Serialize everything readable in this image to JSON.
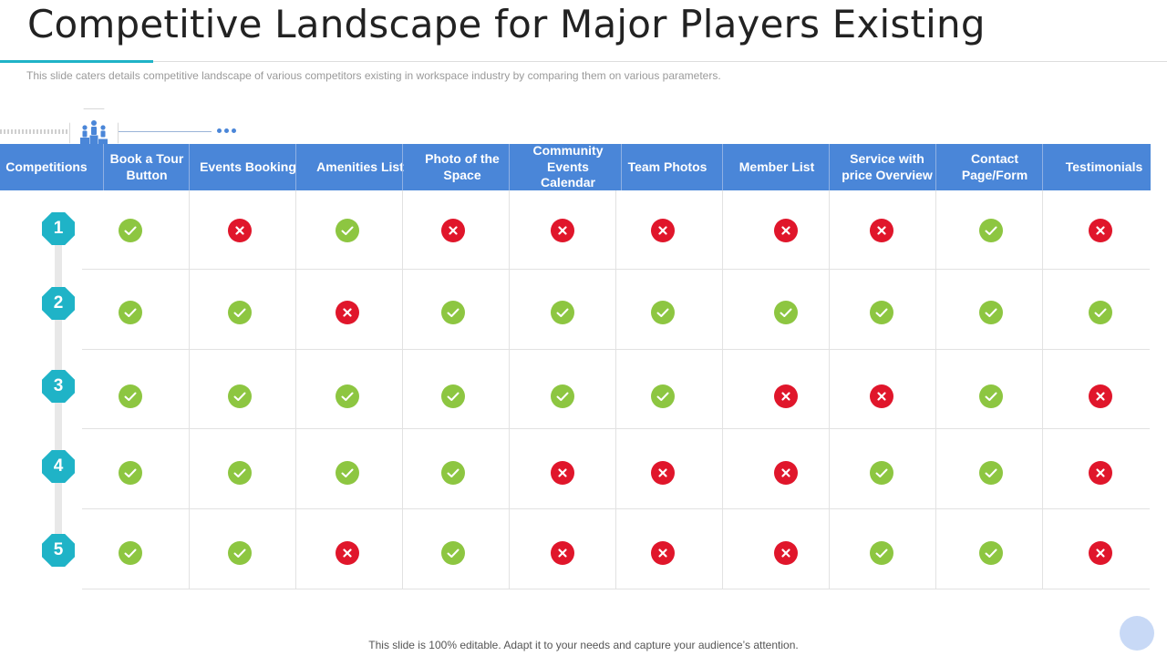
{
  "title": "Competitive Landscape for Major Players Existing",
  "subtitle": "This slide caters details competitive landscape of various  competitors existing in workspace industry by comparing them on various  parameters.",
  "footer": "This slide is 100% editable. Adapt it to your needs and capture your audience’s attention.",
  "badge_icon": "people-podium-icon",
  "colors": {
    "accent": "#1fb3c7",
    "header_blue": "#4a86d8",
    "check_green": "#8dc641",
    "cross_red": "#e0162b"
  },
  "table": {
    "first_column_header": "Competitions",
    "columns": [
      "Book a Tour Button",
      "Events Booking",
      "Amenities List",
      "Photo of the Space",
      "Community Events Calendar",
      "Team Photos",
      "Member List",
      "Service with price Overview",
      "Contact Page/Form",
      "Testimonials"
    ],
    "rows": [
      {
        "label": "1",
        "values": [
          "yes",
          "no",
          "yes",
          "no",
          "no",
          "no",
          "no",
          "no",
          "yes",
          "no"
        ]
      },
      {
        "label": "2",
        "values": [
          "yes",
          "yes",
          "no",
          "yes",
          "yes",
          "yes",
          "yes",
          "yes",
          "yes",
          "yes"
        ]
      },
      {
        "label": "3",
        "values": [
          "yes",
          "yes",
          "yes",
          "yes",
          "yes",
          "yes",
          "no",
          "no",
          "yes",
          "no"
        ]
      },
      {
        "label": "4",
        "values": [
          "yes",
          "yes",
          "yes",
          "yes",
          "no",
          "no",
          "no",
          "yes",
          "yes",
          "no"
        ]
      },
      {
        "label": "5",
        "values": [
          "yes",
          "yes",
          "no",
          "yes",
          "no",
          "no",
          "no",
          "yes",
          "yes",
          "no"
        ]
      }
    ]
  }
}
